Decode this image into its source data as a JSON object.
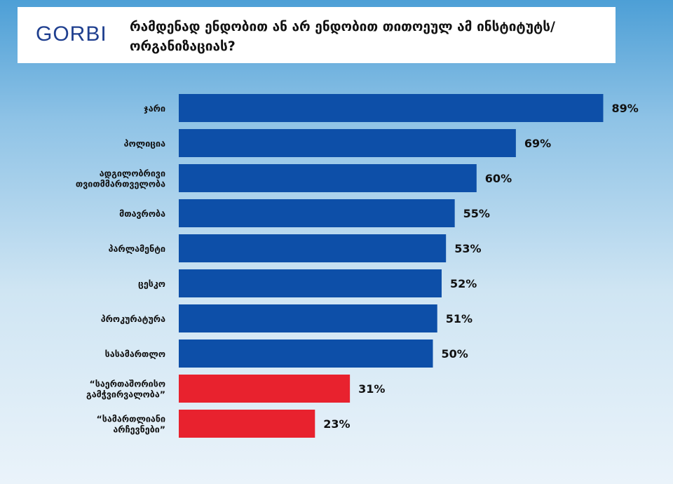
{
  "header": {
    "logo": "GORBI",
    "title": "რამდენად ენდობით ან არ ენდობით თითოეულ ამ ინსტიტუტს/ორგანიზაციას?"
  },
  "chart_data": {
    "type": "bar",
    "orientation": "horizontal",
    "title": "რამდენად ენდობით ან არ ენდობით თითოეულ ამ ინსტიტუტს/ორგანიზაციას?",
    "categories": [
      [
        "ჯარი"
      ],
      [
        "პოლიცია"
      ],
      [
        "ადგილობრივი",
        "თვითმმართველობა"
      ],
      [
        "მთავრობა"
      ],
      [
        "პარლამენტი"
      ],
      [
        "ცესკო"
      ],
      [
        "პროკურატურა"
      ],
      [
        "სასამართლო"
      ],
      [
        "“საერთაშორისო",
        "გამჭვირვალობა”"
      ],
      [
        "“სამართლიანი",
        "არჩევნები”"
      ]
    ],
    "values": [
      89,
      69,
      60,
      55,
      53,
      52,
      51,
      50,
      31,
      23
    ],
    "value_labels": [
      "89%",
      "69%",
      "60%",
      "55%",
      "53%",
      "52%",
      "51%",
      "50%",
      "31%",
      "23%"
    ],
    "colors": [
      "#0d4fa8",
      "#0d4fa8",
      "#0d4fa8",
      "#0d4fa8",
      "#0d4fa8",
      "#0d4fa8",
      "#0d4fa8",
      "#0d4fa8",
      "#e8222e",
      "#e8222e"
    ],
    "xlabel": "",
    "ylabel": "",
    "grid": false
  }
}
